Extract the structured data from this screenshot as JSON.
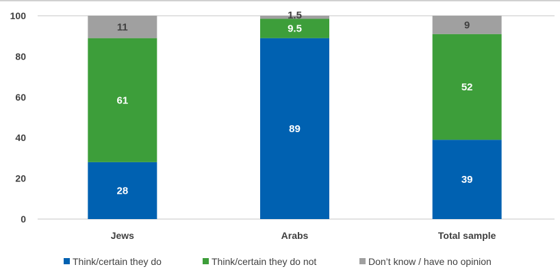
{
  "chart_data": {
    "type": "bar",
    "stacked": true,
    "categories": [
      "Jews",
      "Arabs",
      "Total sample"
    ],
    "series": [
      {
        "name": "Think/certain they do",
        "values": [
          28,
          89,
          39
        ],
        "color": "#0061B1",
        "label_color": "#ffffff"
      },
      {
        "name": "Think/certain they do not",
        "values": [
          61,
          9.5,
          52
        ],
        "color": "#3D9E3A",
        "label_color": "#ffffff"
      },
      {
        "name": "Don’t know / have no opinion",
        "values": [
          11,
          1.5,
          9
        ],
        "color": "#A0A0A0",
        "label_color": "#404040"
      }
    ],
    "ylim": [
      0,
      100
    ],
    "yticks": [
      0,
      20,
      40,
      60,
      80,
      100
    ],
    "title": "",
    "xlabel": "",
    "ylabel": "",
    "grid": false,
    "legend_position": "bottom"
  }
}
